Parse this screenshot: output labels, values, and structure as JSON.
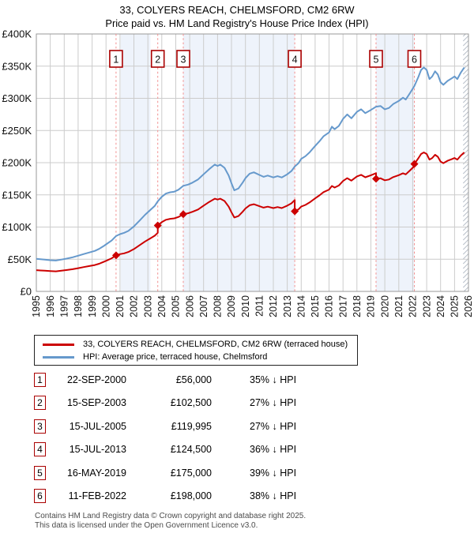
{
  "title": "33, COLYERS REACH, CHELMSFORD, CM2 6RW",
  "subtitle": "Price paid vs. HM Land Registry's House Price Index (HPI)",
  "legend": {
    "property_label": "33, COLYERS REACH, CHELMSFORD, CM2 6RW (terraced house)",
    "hpi_label": "HPI: Average price, terraced house, Chelmsford"
  },
  "transactions": [
    {
      "num": "1",
      "date": "22-SEP-2000",
      "price": "£56,000",
      "hpi_delta": "35% ↓ HPI"
    },
    {
      "num": "2",
      "date": "15-SEP-2003",
      "price": "£102,500",
      "hpi_delta": "27% ↓ HPI"
    },
    {
      "num": "3",
      "date": "15-JUL-2005",
      "price": "£119,995",
      "hpi_delta": "27% ↓ HPI"
    },
    {
      "num": "4",
      "date": "15-JUL-2013",
      "price": "£124,500",
      "hpi_delta": "36% ↓ HPI"
    },
    {
      "num": "5",
      "date": "16-MAY-2019",
      "price": "£175,000",
      "hpi_delta": "39% ↓ HPI"
    },
    {
      "num": "6",
      "date": "11-FEB-2022",
      "price": "£198,000",
      "hpi_delta": "38% ↓ HPI"
    }
  ],
  "footer": {
    "line1": "Contains HM Land Registry data © Crown copyright and database right 2025.",
    "line2": "This data is licensed under the Open Government Licence v3.0."
  },
  "colors": {
    "property_line": "#cc0000",
    "hpi_line": "#6699cc",
    "sale_marker": "#cc0000",
    "badge_border": "#aa0000",
    "dashed_guide": "#f28f8f",
    "band_fill": "#eef3fb",
    "grid": "#cccccc",
    "plot_border": "#999999",
    "hatch": "#b8bfc9"
  },
  "chart_data": {
    "type": "line",
    "title": "33, COLYERS REACH, CHELMSFORD, CM2 6RW",
    "subtitle": "Price paid vs. HM Land Registry's House Price Index (HPI)",
    "xlim": [
      1995,
      2026
    ],
    "ylim": [
      0,
      400
    ],
    "y_unit": "thousands GBP",
    "grid": true,
    "legend_position": "below",
    "x_ticks": [
      1995,
      1996,
      1997,
      1998,
      1999,
      2000,
      2001,
      2002,
      2003,
      2004,
      2005,
      2006,
      2007,
      2008,
      2009,
      2010,
      2011,
      2012,
      2013,
      2014,
      2015,
      2016,
      2017,
      2018,
      2019,
      2020,
      2021,
      2022,
      2023,
      2024,
      2025,
      2026
    ],
    "y_ticks": [
      {
        "v": 0,
        "label": "£0"
      },
      {
        "v": 50,
        "label": "£50K"
      },
      {
        "v": 100,
        "label": "£100K"
      },
      {
        "v": 150,
        "label": "£150K"
      },
      {
        "v": 200,
        "label": "£200K"
      },
      {
        "v": 250,
        "label": "£250K"
      },
      {
        "v": 300,
        "label": "£300K"
      },
      {
        "v": 350,
        "label": "£350K"
      },
      {
        "v": 400,
        "label": "£400K"
      }
    ],
    "ownership_bands": [
      [
        2001.05,
        2003.18
      ],
      [
        2005.54,
        2013.54
      ],
      [
        2019.37,
        2022.12
      ]
    ],
    "future_hatch_from": 2025.62,
    "sales": [
      {
        "num": "1",
        "x": 2000.72,
        "price_k": 56
      },
      {
        "num": "2",
        "x": 2003.71,
        "price_k": 102.5
      },
      {
        "num": "3",
        "x": 2005.54,
        "price_k": 120
      },
      {
        "num": "4",
        "x": 2013.54,
        "price_k": 124.5
      },
      {
        "num": "5",
        "x": 2019.37,
        "price_k": 175
      },
      {
        "num": "6",
        "x": 2022.12,
        "price_k": 198
      }
    ],
    "series": [
      {
        "name": "HPI: Average price, terraced house, Chelmsford",
        "color_key": "hpi_line",
        "points": [
          [
            1995,
            50.5
          ],
          [
            1995.3,
            50
          ],
          [
            1995.6,
            49.5
          ],
          [
            1996,
            48.5
          ],
          [
            1996.4,
            48
          ],
          [
            1996.8,
            49.5
          ],
          [
            1997.2,
            51
          ],
          [
            1997.6,
            53
          ],
          [
            1998,
            55.5
          ],
          [
            1998.4,
            58
          ],
          [
            1998.8,
            60.5
          ],
          [
            1999.2,
            63
          ],
          [
            1999.5,
            66
          ],
          [
            1999.8,
            70
          ],
          [
            2000,
            73
          ],
          [
            2000.4,
            79
          ],
          [
            2000.72,
            86
          ],
          [
            2001,
            89
          ],
          [
            2001.3,
            91
          ],
          [
            2001.6,
            94
          ],
          [
            2002,
            101
          ],
          [
            2002.4,
            110
          ],
          [
            2002.8,
            119
          ],
          [
            2003.2,
            127
          ],
          [
            2003.5,
            133
          ],
          [
            2003.71,
            140
          ],
          [
            2004,
            147
          ],
          [
            2004.3,
            152
          ],
          [
            2004.6,
            154
          ],
          [
            2004.9,
            155
          ],
          [
            2005.2,
            158
          ],
          [
            2005.54,
            164
          ],
          [
            2005.9,
            166
          ],
          [
            2006.2,
            169
          ],
          [
            2006.6,
            174
          ],
          [
            2007,
            182
          ],
          [
            2007.4,
            190
          ],
          [
            2007.8,
            197
          ],
          [
            2008,
            195
          ],
          [
            2008.2,
            197
          ],
          [
            2008.5,
            192
          ],
          [
            2008.8,
            180
          ],
          [
            2009,
            168
          ],
          [
            2009.2,
            157
          ],
          [
            2009.5,
            160
          ],
          [
            2009.8,
            169
          ],
          [
            2010,
            176
          ],
          [
            2010.3,
            183
          ],
          [
            2010.6,
            185
          ],
          [
            2011,
            181
          ],
          [
            2011.3,
            178
          ],
          [
            2011.6,
            180
          ],
          [
            2012,
            177
          ],
          [
            2012.3,
            179
          ],
          [
            2012.6,
            177
          ],
          [
            2013,
            182
          ],
          [
            2013.3,
            187
          ],
          [
            2013.54,
            194
          ],
          [
            2013.8,
            199
          ],
          [
            2014,
            206
          ],
          [
            2014.3,
            210
          ],
          [
            2014.6,
            216
          ],
          [
            2015,
            226
          ],
          [
            2015.3,
            233
          ],
          [
            2015.6,
            241
          ],
          [
            2016,
            247
          ],
          [
            2016.2,
            256
          ],
          [
            2016.4,
            252
          ],
          [
            2016.7,
            257
          ],
          [
            2017,
            268
          ],
          [
            2017.3,
            275
          ],
          [
            2017.6,
            269
          ],
          [
            2018,
            279
          ],
          [
            2018.3,
            283
          ],
          [
            2018.6,
            277
          ],
          [
            2019,
            282
          ],
          [
            2019.37,
            287
          ],
          [
            2019.7,
            288
          ],
          [
            2020,
            283
          ],
          [
            2020.3,
            285
          ],
          [
            2020.6,
            291
          ],
          [
            2021,
            296
          ],
          [
            2021.3,
            301
          ],
          [
            2021.5,
            298
          ],
          [
            2021.8,
            308
          ],
          [
            2022.12,
            319
          ],
          [
            2022.4,
            333
          ],
          [
            2022.6,
            344
          ],
          [
            2022.8,
            348
          ],
          [
            2023,
            344
          ],
          [
            2023.2,
            330
          ],
          [
            2023.4,
            334
          ],
          [
            2023.6,
            342
          ],
          [
            2023.8,
            337
          ],
          [
            2024,
            325
          ],
          [
            2024.2,
            321
          ],
          [
            2024.5,
            327
          ],
          [
            2024.8,
            331
          ],
          [
            2025,
            334
          ],
          [
            2025.2,
            330
          ],
          [
            2025.45,
            340
          ],
          [
            2025.7,
            348
          ]
        ]
      },
      {
        "name": "33, COLYERS REACH, CHELMSFORD, CM2 6RW (terraced house)",
        "color_key": "property_line",
        "points": [
          [
            1995,
            33
          ],
          [
            1995.3,
            32.5
          ],
          [
            1995.6,
            32.2
          ],
          [
            1996,
            31.6
          ],
          [
            1996.4,
            31.2
          ],
          [
            1996.8,
            32.2
          ],
          [
            1997.2,
            33.2
          ],
          [
            1997.6,
            34.5
          ],
          [
            1998,
            36.1
          ],
          [
            1998.4,
            37.8
          ],
          [
            1998.8,
            39.4
          ],
          [
            1999.2,
            41
          ],
          [
            1999.5,
            43
          ],
          [
            1999.8,
            45.6
          ],
          [
            2000,
            47.5
          ],
          [
            2000.4,
            51.4
          ],
          [
            2000.72,
            56
          ],
          [
            2001,
            57.9
          ],
          [
            2001.3,
            59.2
          ],
          [
            2001.6,
            61.2
          ],
          [
            2002,
            65.8
          ],
          [
            2002.4,
            71.6
          ],
          [
            2002.8,
            77.5
          ],
          [
            2003.2,
            82.7
          ],
          [
            2003.5,
            86.6
          ],
          [
            2003.71,
            91.1
          ],
          [
            2003.71,
            102.5
          ],
          [
            2004,
            107.6
          ],
          [
            2004.3,
            111.3
          ],
          [
            2004.6,
            112.7
          ],
          [
            2004.9,
            113.5
          ],
          [
            2005.2,
            115.7
          ],
          [
            2005.54,
            120
          ],
          [
            2005.9,
            121.5
          ],
          [
            2006.2,
            123.7
          ],
          [
            2006.6,
            127.3
          ],
          [
            2007,
            133.2
          ],
          [
            2007.4,
            139
          ],
          [
            2007.8,
            144.1
          ],
          [
            2008,
            142.7
          ],
          [
            2008.2,
            144.1
          ],
          [
            2008.5,
            140.5
          ],
          [
            2008.8,
            131.7
          ],
          [
            2009,
            122.9
          ],
          [
            2009.2,
            114.9
          ],
          [
            2009.5,
            117.1
          ],
          [
            2009.8,
            123.7
          ],
          [
            2010,
            128.8
          ],
          [
            2010.3,
            133.9
          ],
          [
            2010.6,
            135.4
          ],
          [
            2011,
            132.4
          ],
          [
            2011.3,
            130.2
          ],
          [
            2011.6,
            131.7
          ],
          [
            2012,
            129.5
          ],
          [
            2012.3,
            131
          ],
          [
            2012.6,
            129.5
          ],
          [
            2013,
            133.2
          ],
          [
            2013.3,
            136.8
          ],
          [
            2013.54,
            142
          ],
          [
            2013.54,
            124.5
          ],
          [
            2013.8,
            127.4
          ],
          [
            2014,
            131.8
          ],
          [
            2014.3,
            134.4
          ],
          [
            2014.6,
            138.2
          ],
          [
            2015,
            144.6
          ],
          [
            2015.3,
            149.1
          ],
          [
            2015.6,
            154.2
          ],
          [
            2016,
            158.1
          ],
          [
            2016.2,
            163.8
          ],
          [
            2016.4,
            161.3
          ],
          [
            2016.7,
            164.5
          ],
          [
            2017,
            171.5
          ],
          [
            2017.3,
            176
          ],
          [
            2017.6,
            172.2
          ],
          [
            2018,
            178.6
          ],
          [
            2018.3,
            181.1
          ],
          [
            2018.6,
            177.3
          ],
          [
            2019,
            180.5
          ],
          [
            2019.37,
            183.7
          ],
          [
            2019.37,
            175
          ],
          [
            2019.7,
            175.7
          ],
          [
            2020,
            172.6
          ],
          [
            2020.3,
            173.9
          ],
          [
            2020.6,
            177.5
          ],
          [
            2021,
            180.6
          ],
          [
            2021.3,
            183.6
          ],
          [
            2021.5,
            181.8
          ],
          [
            2021.8,
            187.9
          ],
          [
            2022.12,
            194.6
          ],
          [
            2022.12,
            198
          ],
          [
            2022.4,
            206.7
          ],
          [
            2022.6,
            213.5
          ],
          [
            2022.8,
            216
          ],
          [
            2023,
            213.5
          ],
          [
            2023.2,
            204.8
          ],
          [
            2023.4,
            207.3
          ],
          [
            2023.6,
            212.3
          ],
          [
            2023.8,
            209.2
          ],
          [
            2024,
            201.7
          ],
          [
            2024.2,
            199.3
          ],
          [
            2024.5,
            203
          ],
          [
            2024.8,
            205.4
          ],
          [
            2025,
            207.3
          ],
          [
            2025.2,
            204.8
          ],
          [
            2025.45,
            211
          ],
          [
            2025.7,
            216
          ]
        ]
      }
    ]
  }
}
